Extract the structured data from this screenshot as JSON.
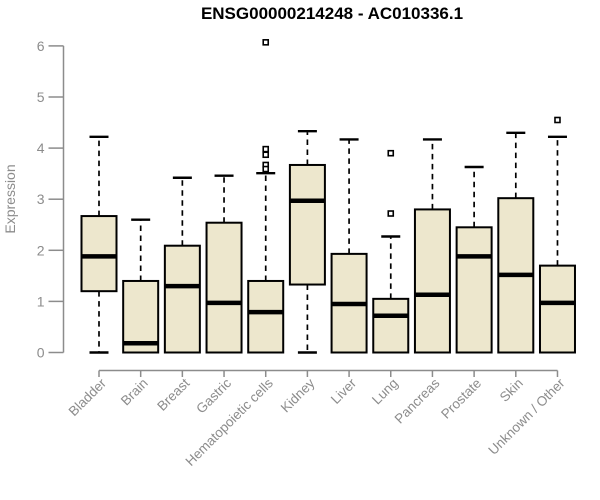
{
  "chart_data": {
    "type": "boxplot",
    "title": "ENSG00000214248 - AC010336.1",
    "ylabel": "Expression",
    "xlabel": "",
    "ylim": [
      0,
      6.2
    ],
    "yticks": [
      0,
      1,
      2,
      3,
      4,
      5,
      6
    ],
    "grid": false,
    "legend": "none",
    "categories": [
      "Bladder",
      "Brain",
      "Breast",
      "Gastric",
      "Hematopoietic cells",
      "Kidney",
      "Liver",
      "Lung",
      "Pancreas",
      "Prostate",
      "Skin",
      "Unknown / Other"
    ],
    "series": [
      {
        "name": "Bladder",
        "low": 0,
        "q1": 1.2,
        "median": 1.88,
        "q3": 2.67,
        "high": 4.22,
        "outliers": []
      },
      {
        "name": "Brain",
        "low": 0,
        "q1": 0.0,
        "median": 0.18,
        "q3": 1.4,
        "high": 2.6,
        "outliers": []
      },
      {
        "name": "Breast",
        "low": 0,
        "q1": 0.0,
        "median": 1.3,
        "q3": 2.09,
        "high": 3.42,
        "outliers": []
      },
      {
        "name": "Gastric",
        "low": 0,
        "q1": 0.0,
        "median": 0.97,
        "q3": 2.54,
        "high": 3.46,
        "outliers": []
      },
      {
        "name": "Hematopoietic cells",
        "low": 0,
        "q1": 0.0,
        "median": 0.79,
        "q3": 1.4,
        "high": 3.51,
        "outliers": [
          6.07,
          3.98,
          3.87,
          3.67,
          3.59
        ]
      },
      {
        "name": "Kidney",
        "low": 0,
        "q1": 1.33,
        "median": 2.97,
        "q3": 3.67,
        "high": 4.33,
        "outliers": []
      },
      {
        "name": "Liver",
        "low": 0,
        "q1": 0.0,
        "median": 0.95,
        "q3": 1.93,
        "high": 4.17,
        "outliers": []
      },
      {
        "name": "Lung",
        "low": 0,
        "q1": 0.0,
        "median": 0.72,
        "q3": 1.05,
        "high": 2.27,
        "outliers": [
          3.9,
          2.72
        ]
      },
      {
        "name": "Pancreas",
        "low": 0,
        "q1": 0.0,
        "median": 1.13,
        "q3": 2.8,
        "high": 4.17,
        "outliers": []
      },
      {
        "name": "Prostate",
        "low": 0,
        "q1": 0.0,
        "median": 1.88,
        "q3": 2.45,
        "high": 3.63,
        "outliers": []
      },
      {
        "name": "Skin",
        "low": 0,
        "q1": 0.0,
        "median": 1.52,
        "q3": 3.02,
        "high": 4.3,
        "outliers": []
      },
      {
        "name": "Unknown / Other",
        "low": 0,
        "q1": 0.0,
        "median": 0.97,
        "q3": 1.7,
        "high": 4.22,
        "outliers": [
          4.55
        ]
      }
    ]
  },
  "colors": {
    "box_fill": "#EDE7CD",
    "box_border": "#000000",
    "median": "#000000",
    "whisker": "#000000",
    "outlier_fill": "#FFFFFF",
    "outlier_border": "#000000",
    "axis": "#8C8C8C",
    "tick_label": "#8C8C8C",
    "title": "#000000",
    "background": "#FFFFFF"
  }
}
